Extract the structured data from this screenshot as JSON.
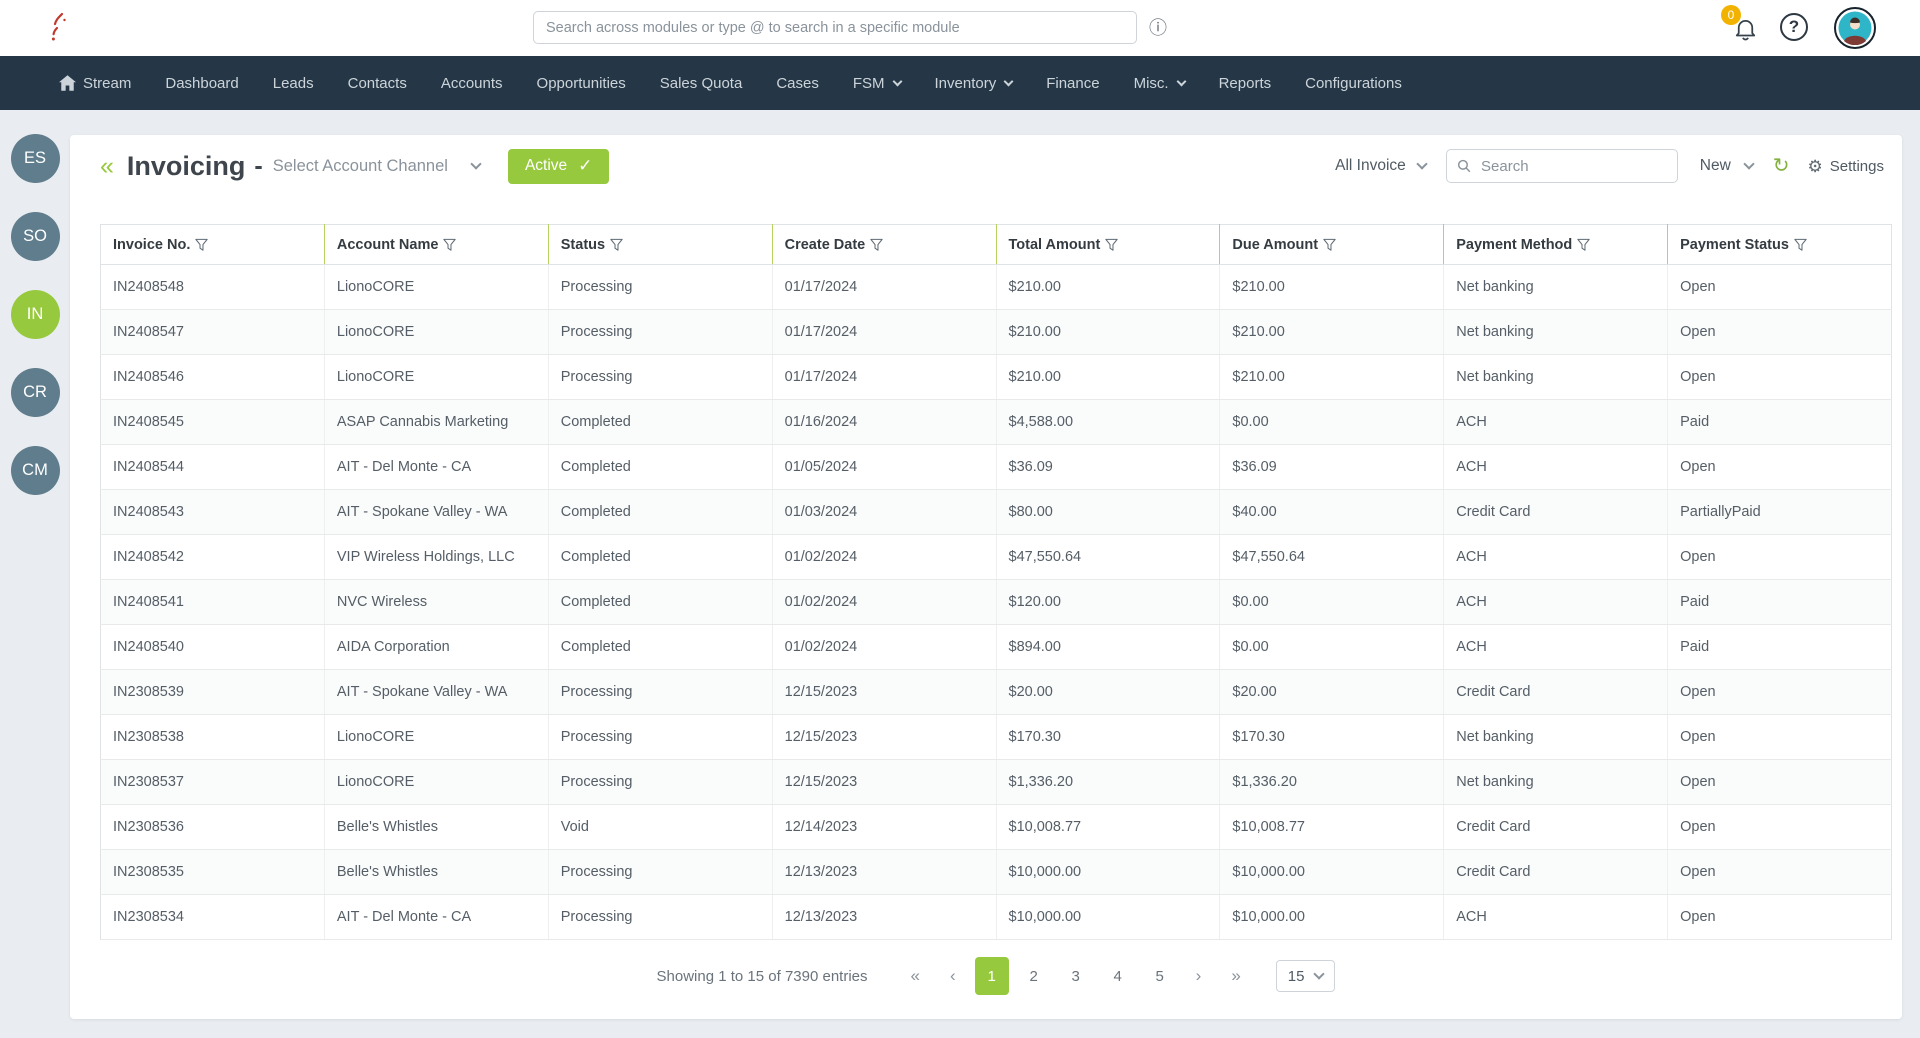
{
  "topbar": {
    "search_placeholder": "Search across modules or type @ to search in a specific module",
    "notification_count": "0",
    "help_label": "?"
  },
  "nav": {
    "items": [
      {
        "label": "Stream",
        "icon": "home",
        "dropdown": false
      },
      {
        "label": "Dashboard",
        "dropdown": false
      },
      {
        "label": "Leads",
        "dropdown": false
      },
      {
        "label": "Contacts",
        "dropdown": false
      },
      {
        "label": "Accounts",
        "dropdown": false
      },
      {
        "label": "Opportunities",
        "dropdown": false
      },
      {
        "label": "Sales Quota",
        "dropdown": false
      },
      {
        "label": "Cases",
        "dropdown": false
      },
      {
        "label": "FSM",
        "dropdown": true
      },
      {
        "label": "Inventory",
        "dropdown": true
      },
      {
        "label": "Finance",
        "dropdown": false
      },
      {
        "label": "Misc.",
        "dropdown": true
      },
      {
        "label": "Reports",
        "dropdown": false
      },
      {
        "label": "Configurations",
        "dropdown": false
      }
    ]
  },
  "sidebar": {
    "items": [
      {
        "label": "ES",
        "active": false
      },
      {
        "label": "SO",
        "active": false
      },
      {
        "label": "IN",
        "active": true
      },
      {
        "label": "CR",
        "active": false
      },
      {
        "label": "CM",
        "active": false
      }
    ]
  },
  "header": {
    "title": "Invoicing",
    "separator": "-",
    "channel_label": "Select Account Channel",
    "status_button": "Active",
    "view_filter": "All Invoice",
    "search_placeholder": "Search",
    "new_label": "New",
    "settings_label": "Settings"
  },
  "table": {
    "columns": [
      "Invoice No.",
      "Account Name",
      "Status",
      "Create Date",
      "Total Amount",
      "Due Amount",
      "Payment Method",
      "Payment Status"
    ],
    "rows": [
      [
        "IN2408548",
        "LionoCORE",
        "Processing",
        "01/17/2024",
        "$210.00",
        "$210.00",
        "Net banking",
        "Open"
      ],
      [
        "IN2408547",
        "LionoCORE",
        "Processing",
        "01/17/2024",
        "$210.00",
        "$210.00",
        "Net banking",
        "Open"
      ],
      [
        "IN2408546",
        "LionoCORE",
        "Processing",
        "01/17/2024",
        "$210.00",
        "$210.00",
        "Net banking",
        "Open"
      ],
      [
        "IN2408545",
        "ASAP Cannabis Marketing",
        "Completed",
        "01/16/2024",
        "$4,588.00",
        "$0.00",
        "ACH",
        "Paid"
      ],
      [
        "IN2408544",
        "AIT - Del Monte - CA",
        "Completed",
        "01/05/2024",
        "$36.09",
        "$36.09",
        "ACH",
        "Open"
      ],
      [
        "IN2408543",
        "AIT - Spokane Valley - WA",
        "Completed",
        "01/03/2024",
        "$80.00",
        "$40.00",
        "Credit Card",
        "PartiallyPaid"
      ],
      [
        "IN2408542",
        "VIP Wireless Holdings, LLC",
        "Completed",
        "01/02/2024",
        "$47,550.64",
        "$47,550.64",
        "ACH",
        "Open"
      ],
      [
        "IN2408541",
        "NVC Wireless",
        "Completed",
        "01/02/2024",
        "$120.00",
        "$0.00",
        "ACH",
        "Paid"
      ],
      [
        "IN2408540",
        "AIDA Corporation",
        "Completed",
        "01/02/2024",
        "$894.00",
        "$0.00",
        "ACH",
        "Paid"
      ],
      [
        "IN2308539",
        "AIT - Spokane Valley - WA",
        "Processing",
        "12/15/2023",
        "$20.00",
        "$20.00",
        "Credit Card",
        "Open"
      ],
      [
        "IN2308538",
        "LionoCORE",
        "Processing",
        "12/15/2023",
        "$170.30",
        "$170.30",
        "Net banking",
        "Open"
      ],
      [
        "IN2308537",
        "LionoCORE",
        "Processing",
        "12/15/2023",
        "$1,336.20",
        "$1,336.20",
        "Net banking",
        "Open"
      ],
      [
        "IN2308536",
        "Belle's Whistles",
        "Void",
        "12/14/2023",
        "$10,008.77",
        "$10,008.77",
        "Credit Card",
        "Open"
      ],
      [
        "IN2308535",
        "Belle's Whistles",
        "Processing",
        "12/13/2023",
        "$10,000.00",
        "$10,000.00",
        "Credit Card",
        "Open"
      ],
      [
        "IN2308534",
        "AIT - Del Monte - CA",
        "Processing",
        "12/13/2023",
        "$10,000.00",
        "$10,000.00",
        "ACH",
        "Open"
      ]
    ]
  },
  "pagination": {
    "summary": "Showing 1 to 15 of 7390 entries",
    "pages": [
      "1",
      "2",
      "3",
      "4",
      "5"
    ],
    "active_page": "1",
    "page_size": "15"
  },
  "icons": {
    "collapse": "«",
    "first": "«",
    "prev": "‹",
    "next": "›",
    "last": "»",
    "check": "✓",
    "refresh": "↻",
    "gear": "⚙",
    "info": "ⓘ"
  },
  "colors": {
    "accent_green": "#97C93E",
    "nav_dark": "#253746",
    "avatar_slate": "#5F7D8C",
    "badge_yellow": "#F2B200",
    "avatar_teal": "#2FB5C8"
  }
}
